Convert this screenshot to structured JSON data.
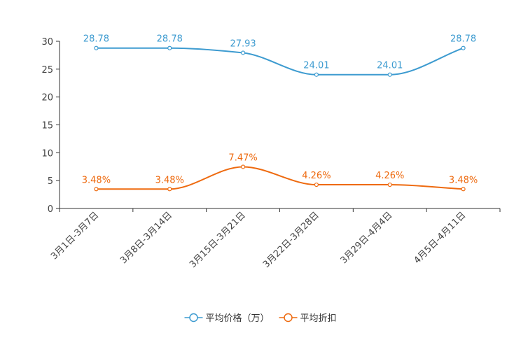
{
  "chart_data": {
    "type": "line",
    "title": "",
    "xlabel": "",
    "ylabel": "",
    "categories": [
      "3月1日-3月7日",
      "3月8日-3月14日",
      "3月15日-3月21日",
      "3月22日-3月28日",
      "3月29日-4月4日",
      "4月5日-4月11日"
    ],
    "ylim": [
      0,
      30
    ],
    "yticks": [
      0,
      5,
      10,
      15,
      20,
      25,
      30
    ],
    "legend_position": "bottom",
    "series": [
      {
        "name": "平均价格（万）",
        "color": "#3d9bd0",
        "values": [
          28.78,
          28.78,
          27.93,
          24.01,
          24.01,
          28.78
        ],
        "labels": [
          "28.78",
          "28.78",
          "27.93",
          "24.01",
          "24.01",
          "28.78"
        ]
      },
      {
        "name": "平均折扣",
        "color": "#ee6a0f",
        "values": [
          3.48,
          3.48,
          7.47,
          4.26,
          4.26,
          3.48
        ],
        "labels": [
          "3.48%",
          "3.48%",
          "7.47%",
          "4.26%",
          "4.26%",
          "3.48%"
        ]
      }
    ]
  }
}
